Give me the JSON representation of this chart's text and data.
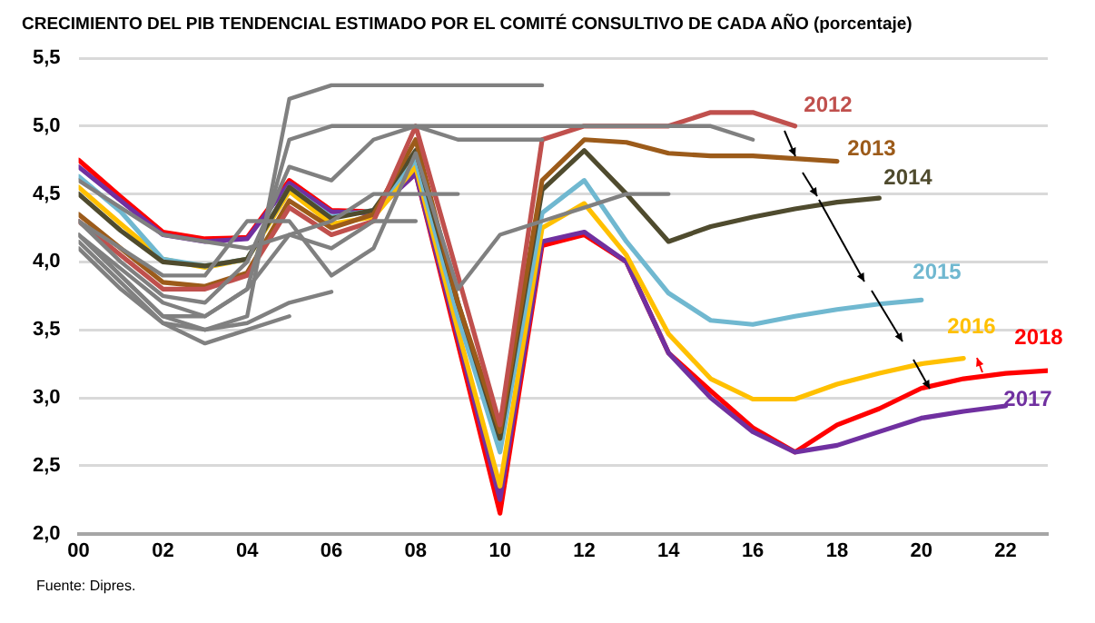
{
  "chart_data": {
    "type": "line",
    "title": "CRECIMIENTO DEL PIB TENDENCIAL ESTIMADO POR EL COMITÉ CONSULTIVO DE CADA AÑO (porcentaje)",
    "annotations": [
      "Fuente: Dipres."
    ],
    "x": [
      2000,
      2001,
      2002,
      2003,
      2004,
      2005,
      2006,
      2007,
      2008,
      2009,
      2010,
      2011,
      2012,
      2013,
      2014,
      2015,
      2016,
      2017,
      2018,
      2019,
      2020,
      2021,
      2022,
      2023
    ],
    "xlim": [
      2000,
      2023
    ],
    "xticks": [
      {
        "value": 2000,
        "label": "00"
      },
      {
        "value": 2002,
        "label": "02"
      },
      {
        "value": 2004,
        "label": "04"
      },
      {
        "value": 2006,
        "label": "06"
      },
      {
        "value": 2008,
        "label": "08"
      },
      {
        "value": 2010,
        "label": "10"
      },
      {
        "value": 2012,
        "label": "12"
      },
      {
        "value": 2014,
        "label": "14"
      },
      {
        "value": 2016,
        "label": "16"
      },
      {
        "value": 2018,
        "label": "18"
      },
      {
        "value": 2020,
        "label": "20"
      },
      {
        "value": 2022,
        "label": "22"
      }
    ],
    "ylim": [
      2.0,
      5.5
    ],
    "yticks": [
      {
        "value": 2.0,
        "label": "2,0"
      },
      {
        "value": 2.5,
        "label": "2,5"
      },
      {
        "value": 3.0,
        "label": "3,0"
      },
      {
        "value": 3.5,
        "label": "3,5"
      },
      {
        "value": 4.0,
        "label": "4,0"
      },
      {
        "value": 4.5,
        "label": "4,5"
      },
      {
        "value": 5.0,
        "label": "5,0"
      },
      {
        "value": 5.5,
        "label": "5,5"
      }
    ],
    "grid": "y",
    "legend": false,
    "marker": "none",
    "line_style": "solid",
    "series": [
      {
        "color": "#808080",
        "values": [
          4.15,
          3.85,
          3.55,
          3.5,
          3.55,
          3.7,
          3.78,
          null,
          null,
          null,
          null,
          null,
          null,
          null,
          null,
          null,
          null,
          null,
          null,
          null,
          null,
          null,
          null,
          null
        ]
      },
      {
        "color": "#808080",
        "values": [
          4.1,
          3.8,
          3.55,
          3.4,
          3.5,
          3.6,
          null,
          null,
          null,
          null,
          null,
          null,
          null,
          null,
          null,
          null,
          null,
          null,
          null,
          null,
          null,
          null,
          null,
          null
        ]
      },
      {
        "color": "#808080",
        "values": [
          4.2,
          3.9,
          3.6,
          3.5,
          3.6,
          5.2,
          5.3,
          5.3,
          5.3,
          5.3,
          5.3,
          5.3,
          null,
          null,
          null,
          null,
          null,
          null,
          null,
          null,
          null,
          null,
          null,
          null
        ]
      },
      {
        "color": "#808080",
        "values": [
          4.2,
          3.95,
          3.7,
          3.6,
          3.8,
          4.9,
          5.0,
          5.0,
          5.0,
          5.0,
          5.0,
          5.0,
          5.0,
          5.0,
          5.0,
          5.0,
          4.9,
          null,
          null,
          null,
          null,
          null,
          null,
          null
        ]
      },
      {
        "color": "#808080",
        "values": [
          4.3,
          4.0,
          3.75,
          3.7,
          4.0,
          4.7,
          4.6,
          4.9,
          5.0,
          4.9,
          4.9,
          4.9,
          null,
          null,
          null,
          null,
          null,
          null,
          null,
          null,
          null,
          null,
          null,
          null
        ]
      },
      {
        "color": "#808080",
        "values": [
          4.6,
          4.4,
          4.2,
          4.15,
          4.1,
          4.2,
          4.3,
          4.5,
          4.5,
          4.5,
          null,
          null,
          null,
          null,
          null,
          null,
          null,
          null,
          null,
          null,
          null,
          null,
          null,
          null
        ]
      },
      {
        "color": "#808080",
        "values": [
          4.3,
          4.1,
          3.9,
          3.9,
          4.3,
          4.3,
          3.9,
          4.1,
          4.8,
          3.8,
          4.2,
          4.3,
          4.4,
          4.5,
          4.5,
          null,
          null,
          null,
          null,
          null,
          null,
          null,
          null,
          null
        ]
      },
      {
        "color": "#808080",
        "values": [
          4.2,
          3.9,
          3.6,
          3.6,
          3.8,
          4.2,
          4.1,
          4.3,
          4.3,
          null,
          null,
          null,
          null,
          null,
          null,
          null,
          null,
          null,
          null,
          null,
          null,
          null,
          null,
          null
        ]
      },
      {
        "name": "2012",
        "color": "#c0504d",
        "values": [
          4.3,
          4.05,
          3.8,
          3.8,
          3.9,
          4.4,
          4.2,
          4.3,
          5.0,
          3.9,
          2.8,
          4.9,
          5.0,
          5.0,
          5.0,
          5.1,
          5.1,
          5.0,
          null,
          null,
          null,
          null,
          null,
          null
        ]
      },
      {
        "name": "2013",
        "color": "#9c5b1a",
        "values": [
          4.35,
          4.1,
          3.85,
          3.82,
          3.92,
          4.45,
          4.25,
          4.35,
          4.9,
          3.7,
          2.75,
          4.6,
          4.9,
          4.88,
          4.8,
          4.78,
          4.78,
          4.76,
          4.74,
          null,
          null,
          null,
          null,
          null
        ]
      },
      {
        "name": "2014",
        "color": "#4f4b2e",
        "values": [
          4.5,
          4.23,
          4.0,
          3.97,
          4.02,
          4.55,
          4.32,
          4.38,
          4.82,
          3.7,
          2.7,
          4.53,
          4.82,
          4.5,
          4.15,
          4.26,
          4.33,
          4.39,
          4.44,
          4.47,
          null,
          null,
          null,
          null
        ]
      },
      {
        "name": "2015",
        "color": "#70b8d0",
        "values": [
          4.63,
          4.37,
          4.02,
          3.97,
          4.02,
          4.55,
          4.33,
          4.38,
          4.75,
          3.6,
          2.6,
          4.36,
          4.6,
          4.15,
          3.77,
          3.57,
          3.54,
          3.6,
          3.65,
          3.69,
          3.72,
          null,
          null,
          null
        ]
      },
      {
        "name": "2016",
        "color": "#ffc000",
        "values": [
          4.55,
          4.28,
          4.02,
          3.96,
          4.02,
          4.52,
          4.28,
          4.33,
          4.7,
          3.5,
          2.35,
          4.25,
          4.43,
          4.05,
          3.47,
          3.14,
          2.99,
          2.99,
          3.1,
          3.18,
          3.25,
          3.29,
          null,
          null
        ]
      },
      {
        "name": "2017",
        "color": "#7030a0",
        "values": [
          4.7,
          4.45,
          4.2,
          4.15,
          4.17,
          4.58,
          4.37,
          4.36,
          4.65,
          3.45,
          2.25,
          4.15,
          4.22,
          4.0,
          3.33,
          3.0,
          2.75,
          2.6,
          2.65,
          2.75,
          2.85,
          2.9,
          2.94,
          null
        ]
      },
      {
        "name": "2018",
        "color": "#ff0000",
        "values": [
          4.75,
          4.48,
          4.22,
          4.17,
          4.18,
          4.6,
          4.38,
          4.37,
          4.65,
          3.4,
          2.15,
          4.12,
          4.2,
          4.0,
          3.33,
          3.05,
          2.78,
          2.6,
          2.8,
          2.92,
          3.07,
          3.14,
          3.18,
          3.2
        ]
      }
    ]
  }
}
